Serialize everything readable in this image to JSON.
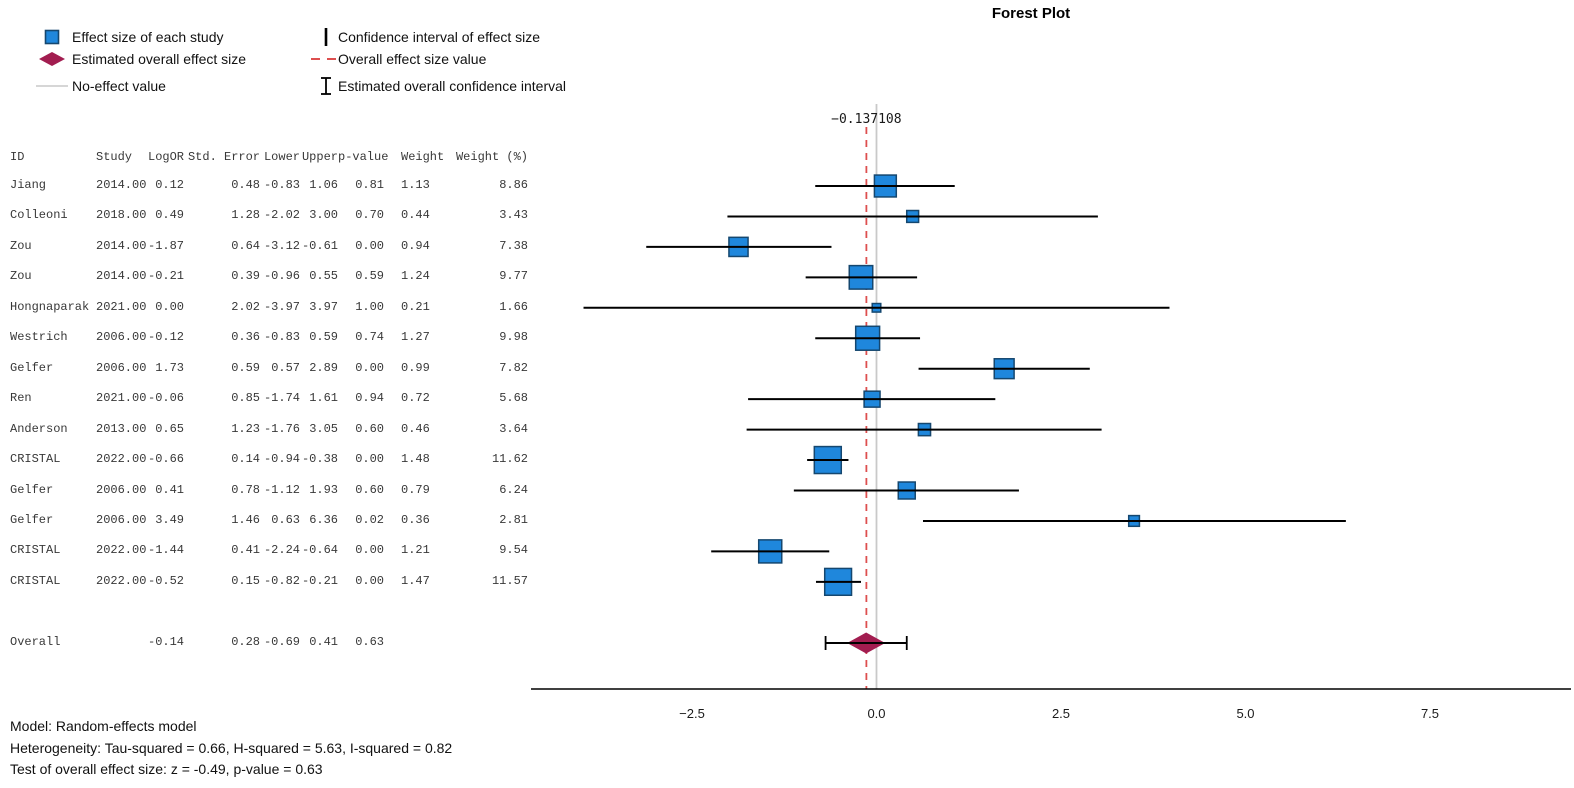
{
  "title": "Forest Plot",
  "legend": {
    "left": [
      {
        "icon": "study-square-icon",
        "label": "Effect size of each study"
      },
      {
        "icon": "overall-diamond-icon",
        "label": "Estimated overall effect size"
      },
      {
        "icon": "no-effect-line-icon",
        "label": "No-effect value"
      }
    ],
    "right": [
      {
        "icon": "ci-bar-icon",
        "label": "Confidence interval of effect size"
      },
      {
        "icon": "overall-dash-icon",
        "label": "Overall effect size value"
      },
      {
        "icon": "overall-ci-icon",
        "label": "Estimated overall confidence interval"
      }
    ]
  },
  "table": {
    "headers": [
      "ID",
      "Study",
      "LogOR",
      "Std. Error",
      "Lower",
      "Upper",
      "p-value",
      "Weight",
      "Weight (%)"
    ]
  },
  "footer": {
    "lines": [
      "Model: Random-effects model",
      "Heterogeneity: Tau-squared = 0.66, H-squared = 5.63, I-squared = 0.82",
      "Test of overall effect size: z = -0.49, p-value = 0.63"
    ]
  },
  "chart_data": {
    "type": "forest",
    "title": "Forest Plot",
    "x_ticks": [
      -2.5,
      0,
      2.5,
      5,
      7.5
    ],
    "x_tick_labels": [
      "−2.5",
      "0.0",
      "2.5",
      "5.0",
      "7.5"
    ],
    "xlim": [
      -4.68,
      9.41
    ],
    "grid": false,
    "legend_position": "top-left",
    "no_effect_value": 0,
    "overall_effect_value": -0.137108,
    "overall_effect_label": "−0.137108",
    "studies": [
      {
        "id": "Jiang",
        "study_year": 2014,
        "logor": 0.12,
        "std_error": 0.48,
        "lower": -0.83,
        "upper": 1.06,
        "p_value": 0.81,
        "weight": 1.13,
        "weight_pct": 8.86
      },
      {
        "id": "Colleoni",
        "study_year": 2018,
        "logor": 0.49,
        "std_error": 1.28,
        "lower": -2.02,
        "upper": 3.0,
        "p_value": 0.7,
        "weight": 0.44,
        "weight_pct": 3.43
      },
      {
        "id": "Zou",
        "study_year": 2014,
        "logor": -1.87,
        "std_error": 0.64,
        "lower": -3.12,
        "upper": -0.61,
        "p_value": 0.0,
        "weight": 0.94,
        "weight_pct": 7.38
      },
      {
        "id": "Zou",
        "study_year": 2014,
        "logor": -0.21,
        "std_error": 0.39,
        "lower": -0.96,
        "upper": 0.55,
        "p_value": 0.59,
        "weight": 1.24,
        "weight_pct": 9.77
      },
      {
        "id": "Hongnaparak",
        "study_year": 2021,
        "logor": 0.0,
        "std_error": 2.02,
        "lower": -3.97,
        "upper": 3.97,
        "p_value": 1.0,
        "weight": 0.21,
        "weight_pct": 1.66
      },
      {
        "id": "Westrich",
        "study_year": 2006,
        "logor": -0.12,
        "std_error": 0.36,
        "lower": -0.83,
        "upper": 0.59,
        "p_value": 0.74,
        "weight": 1.27,
        "weight_pct": 9.98
      },
      {
        "id": "Gelfer",
        "study_year": 2006,
        "logor": 1.73,
        "std_error": 0.59,
        "lower": 0.57,
        "upper": 2.89,
        "p_value": 0.0,
        "weight": 0.99,
        "weight_pct": 7.82
      },
      {
        "id": "Ren",
        "study_year": 2021,
        "logor": -0.06,
        "std_error": 0.85,
        "lower": -1.74,
        "upper": 1.61,
        "p_value": 0.94,
        "weight": 0.72,
        "weight_pct": 5.68
      },
      {
        "id": "Anderson",
        "study_year": 2013,
        "logor": 0.65,
        "std_error": 1.23,
        "lower": -1.76,
        "upper": 3.05,
        "p_value": 0.6,
        "weight": 0.46,
        "weight_pct": 3.64
      },
      {
        "id": "CRISTAL",
        "study_year": 2022,
        "logor": -0.66,
        "std_error": 0.14,
        "lower": -0.94,
        "upper": -0.38,
        "p_value": 0.0,
        "weight": 1.48,
        "weight_pct": 11.62
      },
      {
        "id": "Gelfer",
        "study_year": 2006,
        "logor": 0.41,
        "std_error": 0.78,
        "lower": -1.12,
        "upper": 1.93,
        "p_value": 0.6,
        "weight": 0.79,
        "weight_pct": 6.24
      },
      {
        "id": "Gelfer",
        "study_year": 2006,
        "logor": 3.49,
        "std_error": 1.46,
        "lower": 0.63,
        "upper": 6.36,
        "p_value": 0.02,
        "weight": 0.36,
        "weight_pct": 2.81
      },
      {
        "id": "CRISTAL",
        "study_year": 2022,
        "logor": -1.44,
        "std_error": 0.41,
        "lower": -2.24,
        "upper": -0.64,
        "p_value": 0.0,
        "weight": 1.21,
        "weight_pct": 9.54
      },
      {
        "id": "CRISTAL",
        "study_year": 2022,
        "logor": -0.52,
        "std_error": 0.15,
        "lower": -0.82,
        "upper": -0.21,
        "p_value": 0.0,
        "weight": 1.47,
        "weight_pct": 11.57
      }
    ],
    "overall": {
      "id": "Overall",
      "logor": -0.14,
      "std_error": 0.28,
      "lower": -0.69,
      "upper": 0.41,
      "p_value": 0.63
    },
    "colors": {
      "study_fill": "#1f87dc",
      "study_border": "#15476f",
      "overall_diamond": "#a21d50",
      "overall_dash": "#dd4f4f",
      "no_effect": "#c9c9c9",
      "ci": "#000000",
      "axis": "#000000"
    }
  }
}
